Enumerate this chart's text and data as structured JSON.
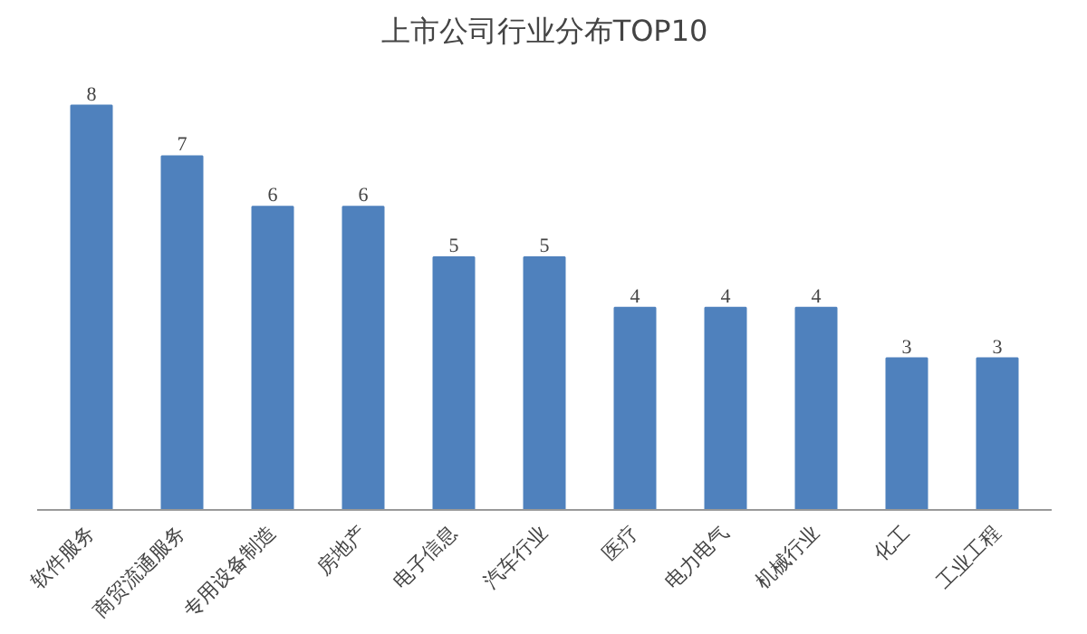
{
  "chart_data": {
    "type": "bar",
    "title": "上市公司行业分布TOP10",
    "categories": [
      "软件服务",
      "商贸流通服务",
      "专用设备制造",
      "房地产",
      "电子信息",
      "汽车行业",
      "医疗",
      "电力电气",
      "机械行业",
      "化工",
      "工业工程"
    ],
    "values": [
      8,
      7,
      6,
      6,
      5,
      5,
      4,
      4,
      4,
      3,
      3
    ],
    "color": "#4f81bd",
    "data_labels": true
  }
}
